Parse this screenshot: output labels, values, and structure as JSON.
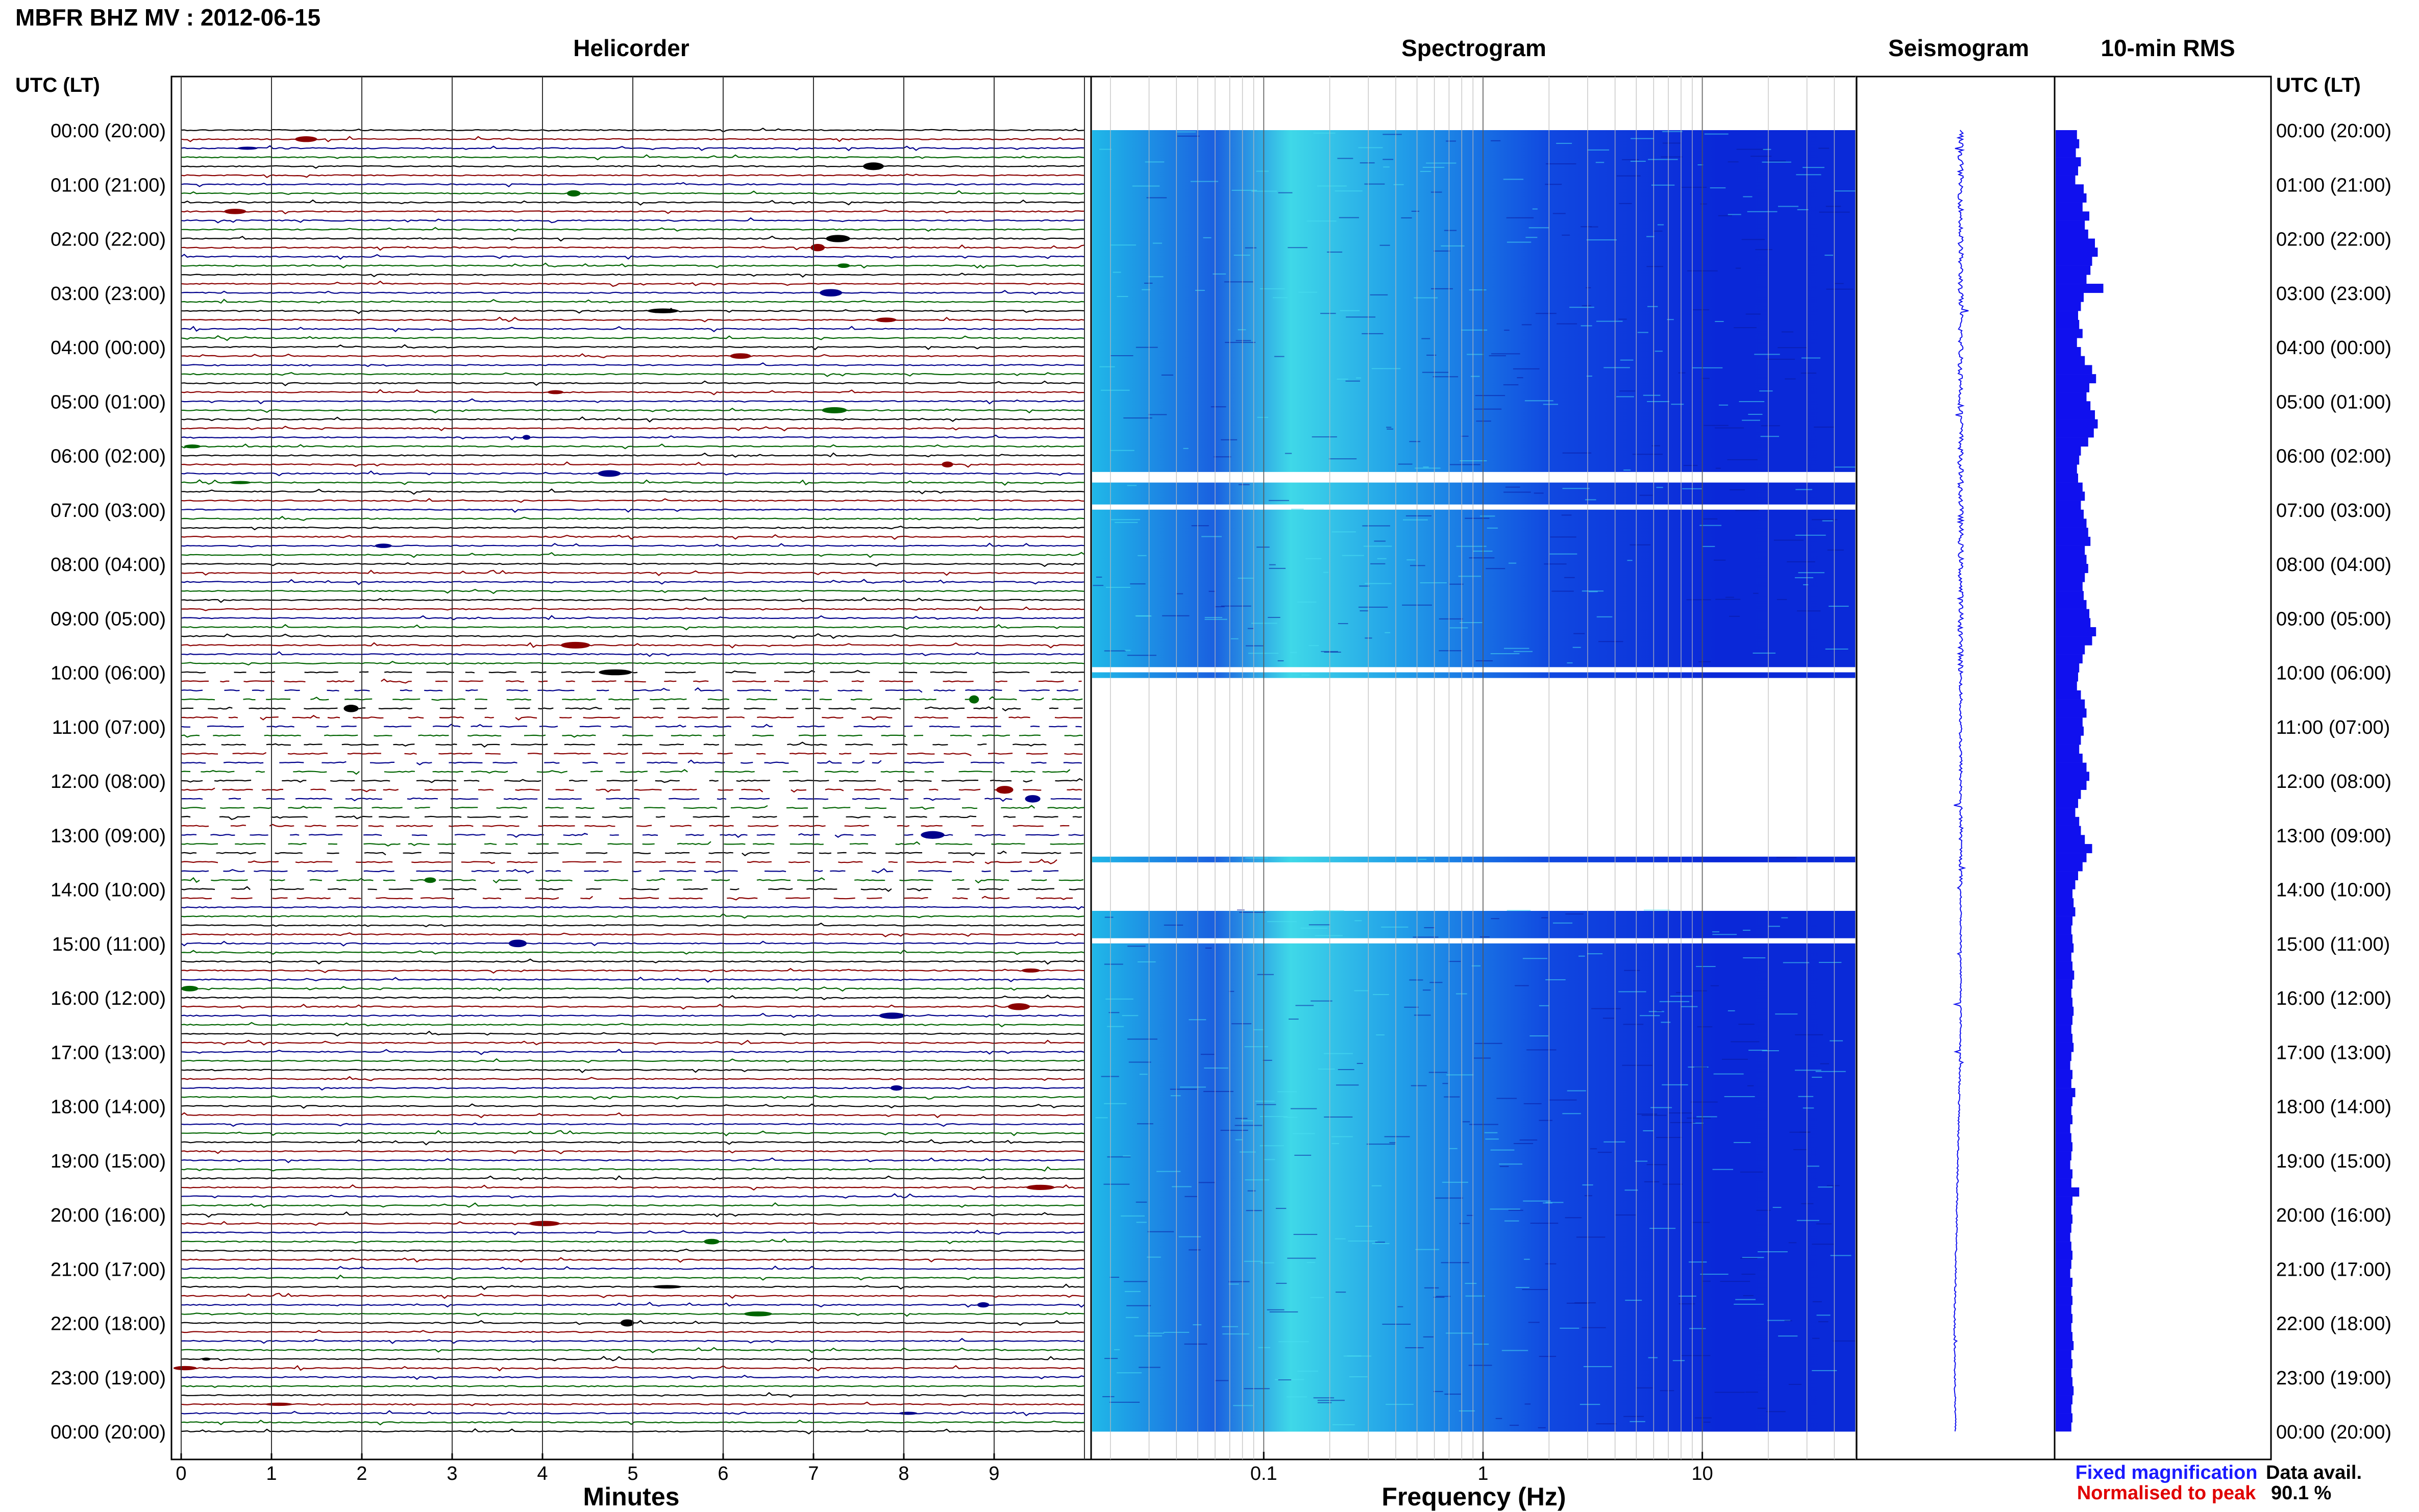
{
  "header": {
    "title": "MBFR BHZ MV : 2012-06-15",
    "utc_label_left": "UTC (LT)",
    "utc_label_right": "UTC (LT)"
  },
  "panels": {
    "helicorder": "Helicorder",
    "spectrogram": "Spectrogram",
    "seismogram": "Seismogram",
    "rms": "10-min RMS"
  },
  "time_labels": [
    "00:00 (20:00)",
    "01:00 (21:00)",
    "02:00 (22:00)",
    "03:00 (23:00)",
    "04:00 (00:00)",
    "05:00 (01:00)",
    "06:00 (02:00)",
    "07:00 (03:00)",
    "08:00 (04:00)",
    "09:00 (05:00)",
    "10:00 (06:00)",
    "11:00 (07:00)",
    "12:00 (08:00)",
    "13:00 (09:00)",
    "14:00 (10:00)",
    "15:00 (11:00)",
    "16:00 (12:00)",
    "17:00 (13:00)",
    "18:00 (14:00)",
    "19:00 (15:00)",
    "20:00 (16:00)",
    "21:00 (17:00)",
    "22:00 (18:00)",
    "23:00 (19:00)",
    "00:00 (20:00)"
  ],
  "helicorder_axis": {
    "xlabel": "Minutes",
    "ticks": [
      "0",
      "1",
      "2",
      "3",
      "4",
      "5",
      "6",
      "7",
      "8",
      "9"
    ]
  },
  "spectrogram_axis": {
    "xlabel": "Frequency (Hz)",
    "ticks": [
      "0.1",
      "1",
      "10"
    ],
    "scale": "log"
  },
  "legend": {
    "fixed": "Fixed magnification",
    "normalised": "Normalised to peak",
    "fixed_color": "#1a1aff",
    "normalised_color": "#e00000"
  },
  "data_availability": {
    "label": "Data avail.",
    "value": "90.1 %"
  },
  "colors": {
    "trace_colors": [
      "#000000",
      "#8b0000",
      "#00008b",
      "#006400"
    ],
    "spectrogram_low": "#0a1fe0",
    "spectrogram_high": "#3fe0f0",
    "rms_bar": "#1010ee"
  },
  "chart_data": {
    "type": "heatmap",
    "title": "MBFR BHZ MV : 2012-06-15",
    "hours": 24,
    "helicorder_lines_per_hour": 6,
    "minutes_per_line": 10,
    "spectrogram_gaps_hours": [
      [
        6.3,
        6.5
      ],
      [
        6.85,
        6.95
      ],
      [
        9.85,
        10.0
      ],
      [
        10.05,
        13.4
      ],
      [
        13.5,
        14.35
      ],
      [
        14.9,
        15.0
      ]
    ],
    "rms_10min": [
      0.38,
      0.42,
      0.36,
      0.45,
      0.4,
      0.35,
      0.5,
      0.55,
      0.48,
      0.6,
      0.52,
      0.58,
      0.7,
      0.75,
      0.65,
      0.62,
      0.55,
      0.85,
      0.5,
      0.45,
      0.4,
      0.42,
      0.48,
      0.38,
      0.45,
      0.52,
      0.65,
      0.72,
      0.6,
      0.55,
      0.62,
      0.7,
      0.75,
      0.68,
      0.58,
      0.45,
      0.42,
      0.38,
      0.4,
      0.48,
      0.52,
      0.45,
      0.5,
      0.55,
      0.58,
      0.62,
      0.52,
      0.55,
      0.58,
      0.52,
      0.48,
      0.5,
      0.55,
      0.6,
      0.62,
      0.72,
      0.65,
      0.52,
      0.48,
      0.42,
      0.4,
      0.38,
      0.45,
      0.52,
      0.55,
      0.48,
      0.5,
      0.45,
      0.42,
      0.48,
      0.55,
      0.6,
      0.55,
      0.45,
      0.4,
      0.35,
      0.42,
      0.45,
      0.52,
      0.65,
      0.55,
      0.48,
      0.4,
      0.35,
      0.3,
      0.32,
      0.35,
      0.3,
      0.28,
      0.3,
      0.32,
      0.28,
      0.3,
      0.33,
      0.3,
      0.28,
      0.3,
      0.32,
      0.3,
      0.28,
      0.3,
      0.32,
      0.28,
      0.26,
      0.3,
      0.28,
      0.35,
      0.3,
      0.28,
      0.3,
      0.26,
      0.28,
      0.3,
      0.28,
      0.26,
      0.3,
      0.28,
      0.42,
      0.3,
      0.28,
      0.3,
      0.28,
      0.26,
      0.28,
      0.3,
      0.28,
      0.26,
      0.3,
      0.28,
      0.3,
      0.28,
      0.3,
      0.28,
      0.3,
      0.32,
      0.28,
      0.3,
      0.28,
      0.3,
      0.32,
      0.3,
      0.28,
      0.3,
      0.28
    ]
  }
}
